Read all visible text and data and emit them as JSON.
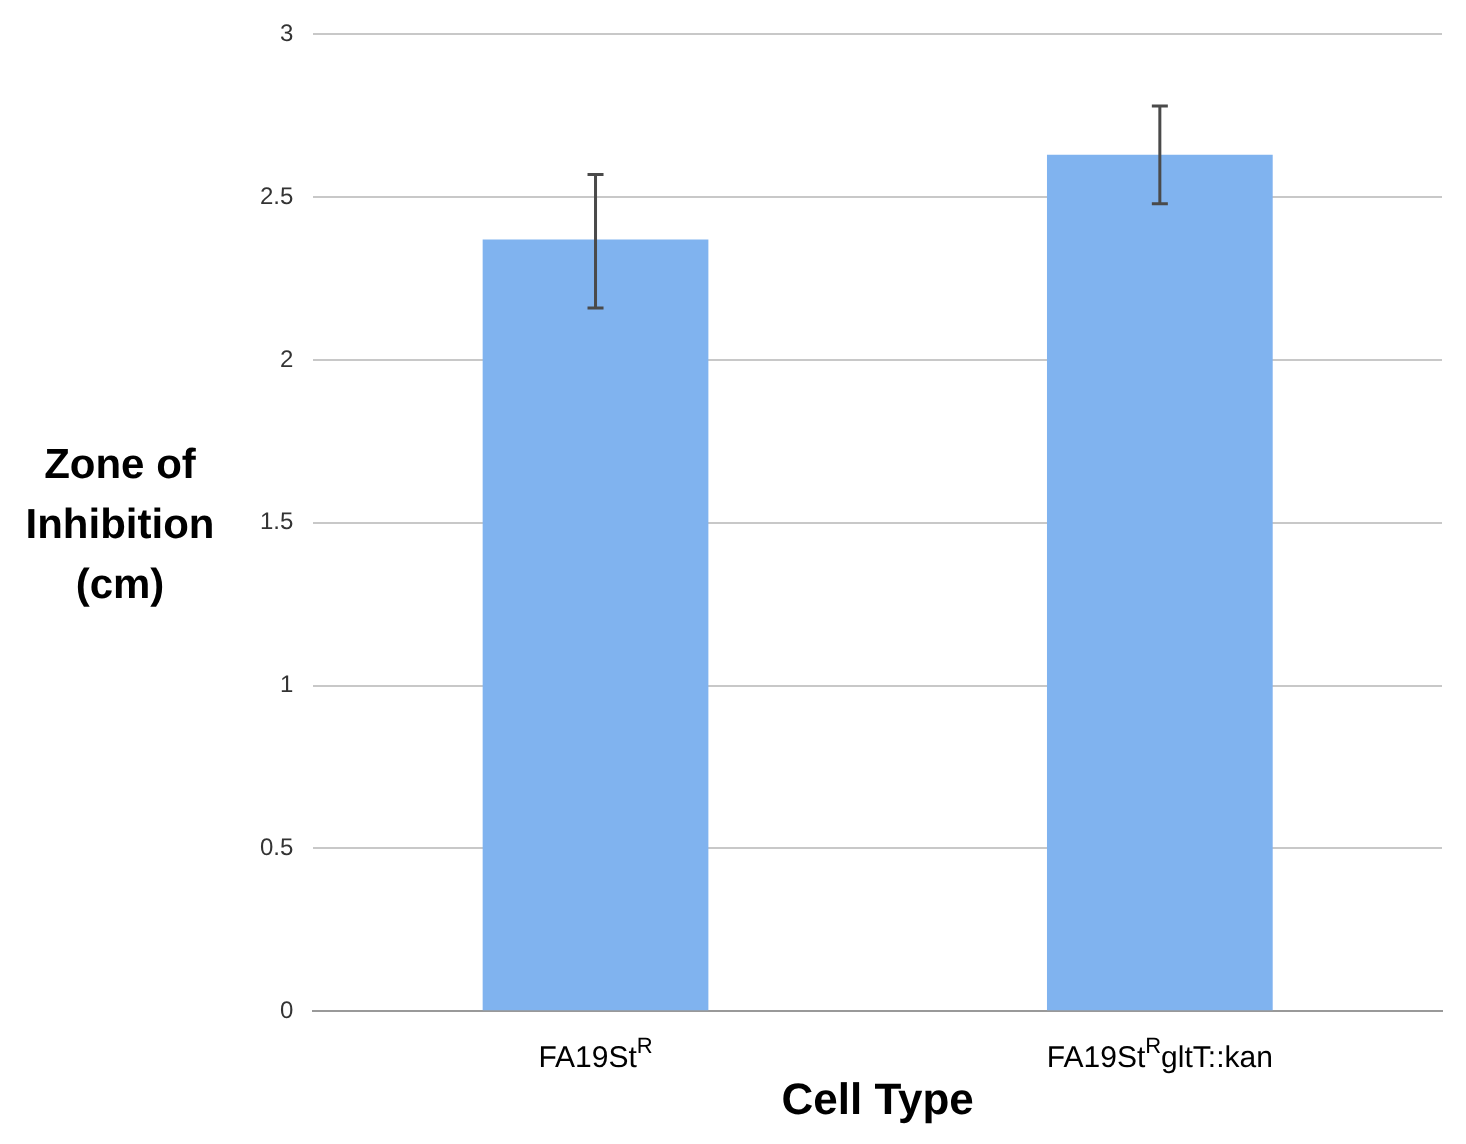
{
  "chart_data": {
    "type": "bar",
    "xlabel": "Cell Type",
    "ylabel": "Zone of Inhibition (cm)",
    "categories": [
      "FA19St$^{R}$",
      "FA19St$^{R}$gltT::kan"
    ],
    "values": [
      2.37,
      2.63
    ],
    "errors": [
      [
        2.16,
        2.57
      ],
      [
        2.48,
        2.78
      ]
    ],
    "color": "#80b3ef",
    "ylim": [
      0,
      3
    ],
    "yticks": [
      0,
      0.5,
      1,
      1.5,
      2,
      2.5,
      3
    ],
    "grid": "y",
    "legend": false
  }
}
